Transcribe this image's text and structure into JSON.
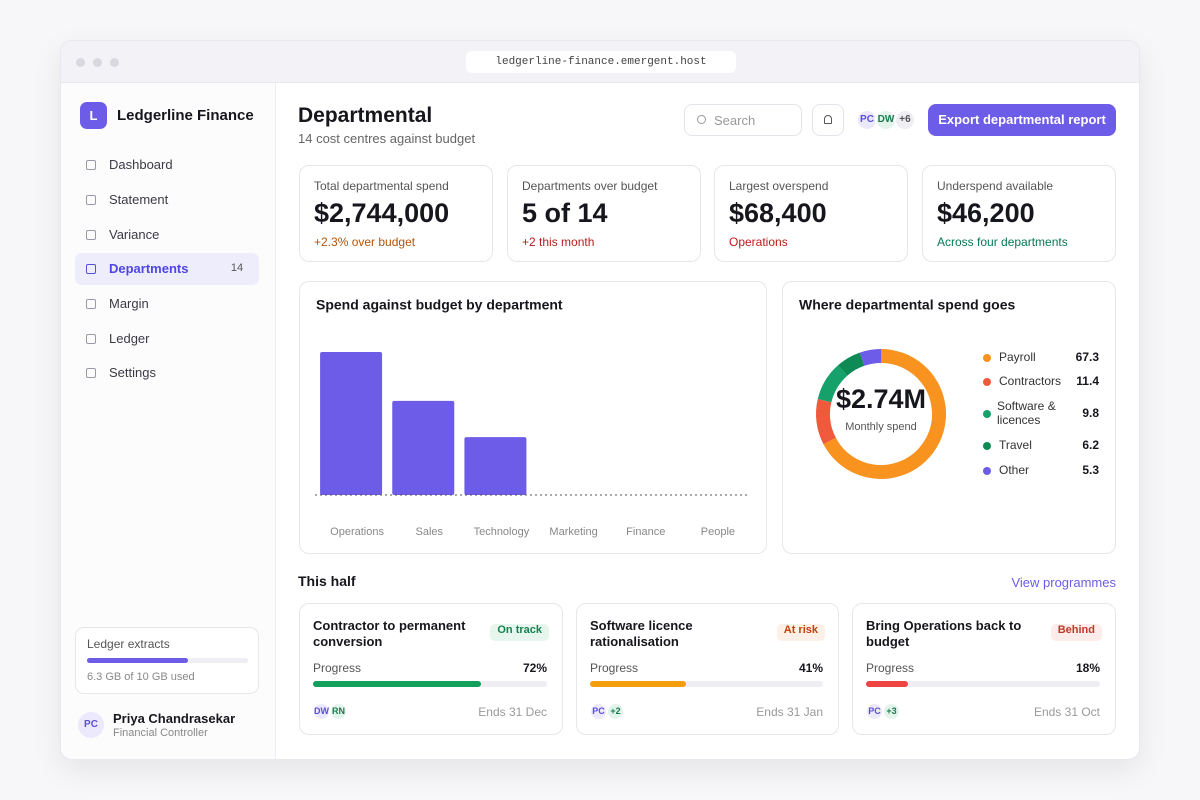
{
  "browser": {
    "url": "ledgerline-finance.emergent.host"
  },
  "sidebar": {
    "brand_initial": "L",
    "brand": "Ledgerline Finance",
    "nav": [
      {
        "label": "Dashboard"
      },
      {
        "label": "Statement"
      },
      {
        "label": "Variance"
      },
      {
        "label": "Departments",
        "badge": "14",
        "active": true
      },
      {
        "label": "Margin"
      },
      {
        "label": "Ledger"
      },
      {
        "label": "Settings"
      }
    ],
    "storage": {
      "title": "Ledger extracts",
      "used": 6.3,
      "total": 10,
      "label": "6.3 GB of 10 GB used"
    },
    "user": {
      "initials": "PC",
      "name": "Priya Chandrasekar",
      "role": "Financial Controller"
    }
  },
  "header": {
    "title": "Departmental",
    "subtitle": "14 cost centres against budget",
    "search_placeholder": "Search",
    "avatars": [
      "PC",
      "DW",
      "+6"
    ],
    "export_button": "Export departmental report"
  },
  "kpis": [
    {
      "label": "Total departmental spend",
      "value": "$2,744,000",
      "note": "+2.3% over budget",
      "tone": "#b45309"
    },
    {
      "label": "Departments over budget",
      "value": "5 of 14",
      "note": "+2 this month",
      "tone": "#b91c1c"
    },
    {
      "label": "Largest overspend",
      "value": "$68,400",
      "note": "Operations",
      "tone": "#b91c1c"
    },
    {
      "label": "Underspend available",
      "value": "$46,200",
      "note": "Across four departments",
      "tone": "#047857"
    }
  ],
  "chart_data": [
    {
      "type": "bar",
      "title": "Spend against budget by department",
      "categories": [
        "Operations",
        "Sales",
        "Technology",
        "Marketing",
        "Finance",
        "People"
      ],
      "values": [
        68400,
        45000,
        27700,
        0,
        0,
        0
      ],
      "color": "#6c5ce7"
    },
    {
      "type": "donut",
      "title": "Where departmental spend goes",
      "center_value": "$2.74M",
      "center_label": "Monthly spend",
      "categories": [
        "Payroll",
        "Contractors",
        "Software & licences",
        "Travel",
        "Other"
      ],
      "values": [
        67.3,
        11.4,
        9.8,
        6.2,
        5.3
      ],
      "colors": [
        "#f7931e",
        "#ef5a3c",
        "#16a06a",
        "#0e8a55",
        "#6c5ce7"
      ]
    }
  ],
  "programmes": {
    "title": "This half",
    "link": "View programmes",
    "items": [
      {
        "title": "Contractor to permanent conversion",
        "status": "On track",
        "progress_label": "Progress",
        "progress": 72,
        "value_label": "72%",
        "avatars": [
          "DW",
          "RN"
        ],
        "ends": "Ends 31 Dec",
        "color": "#12a05c",
        "status_bg": "#e6f6ee",
        "status_fg": "#16804f"
      },
      {
        "title": "Software licence rationalisation",
        "status": "At risk",
        "progress_label": "Progress",
        "progress": 41,
        "value_label": "41%",
        "avatars": [
          "PC",
          "+2"
        ],
        "ends": "Ends 31 Jan",
        "color": "#f59e0b",
        "status_bg": "#fdf0e6",
        "status_fg": "#c2410c"
      },
      {
        "title": "Bring Operations back to budget",
        "status": "Behind",
        "progress_label": "Progress",
        "progress": 18,
        "value_label": "18%",
        "avatars": [
          "PC",
          "+3"
        ],
        "ends": "Ends 31 Oct",
        "color": "#ef4444",
        "status_bg": "#fdecea",
        "status_fg": "#c0392b"
      }
    ]
  }
}
